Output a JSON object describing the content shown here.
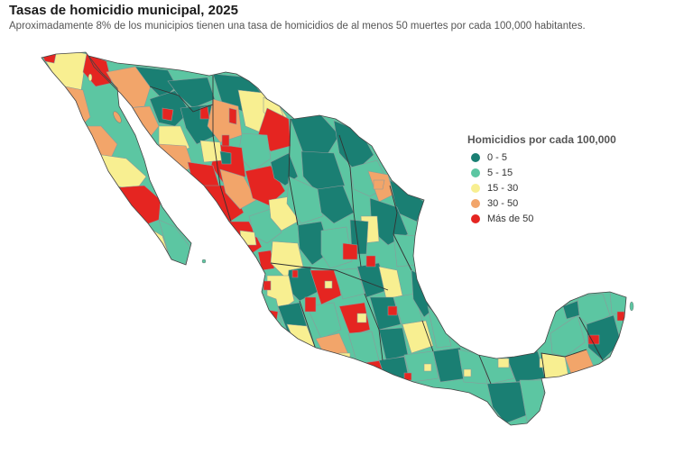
{
  "title": "Tasas de homicidio municipal, 2025",
  "subtitle": "Aproximadamente 8% de los municipios tienen una tasa de homicidios de al menos 50 muertes por cada 100,000 habitantes.",
  "legend": {
    "title": "Homicidios por cada 100,000",
    "items": [
      {
        "label": "0 - 5",
        "color": "#1a7f73"
      },
      {
        "label": "5 - 15",
        "color": "#5cc6a2"
      },
      {
        "label": "15 - 30",
        "color": "#f8ef91"
      },
      {
        "label": "30 - 50",
        "color": "#f2a56a"
      },
      {
        "label": "Más de 50",
        "color": "#e52521"
      }
    ]
  },
  "colors": {
    "border": "#7f8c8d",
    "state_border": "#333333"
  }
}
